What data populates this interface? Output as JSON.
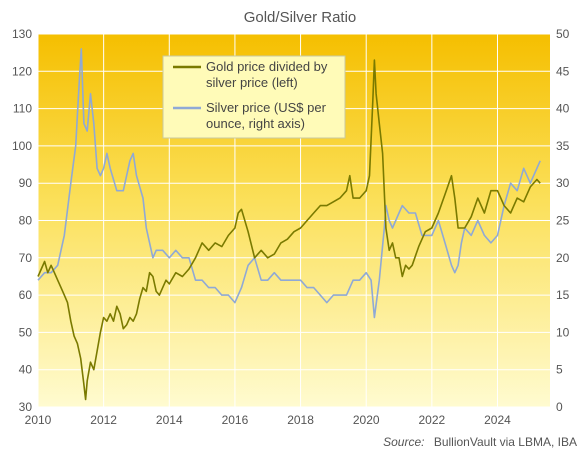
{
  "chart_data": {
    "type": "line",
    "title": "Gold/Silver Ratio",
    "source_label": "Source:",
    "source_text": "BullionVault via LBMA, IBA",
    "x_ticks": [
      "2010",
      "2012",
      "2014",
      "2016",
      "2018",
      "2020",
      "2022",
      "2024"
    ],
    "x_range": [
      2010,
      2025.6
    ],
    "y_left": {
      "range": [
        30,
        130
      ],
      "ticks": [
        "30",
        "40",
        "50",
        "60",
        "70",
        "80",
        "90",
        "100",
        "110",
        "120",
        "130"
      ]
    },
    "y_right": {
      "range": [
        0,
        50
      ],
      "ticks": [
        "0",
        "5",
        "10",
        "15",
        "20",
        "25",
        "30",
        "35",
        "40",
        "45",
        "50"
      ]
    },
    "legend": {
      "placement": "top-center"
    },
    "series": [
      {
        "name_lines": [
          "Gold price divided by",
          "silver price (left)"
        ],
        "axis": "left",
        "color": "#7a7a00",
        "points": [
          [
            2010.0,
            65
          ],
          [
            2010.1,
            67
          ],
          [
            2010.2,
            69
          ],
          [
            2010.3,
            66
          ],
          [
            2010.4,
            68
          ],
          [
            2010.5,
            66
          ],
          [
            2010.6,
            64
          ],
          [
            2010.7,
            62
          ],
          [
            2010.8,
            60
          ],
          [
            2010.9,
            58
          ],
          [
            2011.0,
            53
          ],
          [
            2011.1,
            49
          ],
          [
            2011.2,
            47
          ],
          [
            2011.3,
            43
          ],
          [
            2011.4,
            36
          ],
          [
            2011.45,
            32
          ],
          [
            2011.5,
            37
          ],
          [
            2011.6,
            42
          ],
          [
            2011.7,
            40
          ],
          [
            2011.8,
            45
          ],
          [
            2011.9,
            50
          ],
          [
            2012.0,
            54
          ],
          [
            2012.1,
            53
          ],
          [
            2012.2,
            55
          ],
          [
            2012.3,
            53
          ],
          [
            2012.4,
            57
          ],
          [
            2012.5,
            55
          ],
          [
            2012.6,
            51
          ],
          [
            2012.7,
            52
          ],
          [
            2012.8,
            54
          ],
          [
            2012.9,
            53
          ],
          [
            2013.0,
            55
          ],
          [
            2013.1,
            59
          ],
          [
            2013.2,
            62
          ],
          [
            2013.3,
            61
          ],
          [
            2013.4,
            66
          ],
          [
            2013.5,
            65
          ],
          [
            2013.6,
            61
          ],
          [
            2013.7,
            60
          ],
          [
            2013.8,
            62
          ],
          [
            2013.9,
            64
          ],
          [
            2014.0,
            63
          ],
          [
            2014.2,
            66
          ],
          [
            2014.4,
            65
          ],
          [
            2014.6,
            67
          ],
          [
            2014.8,
            70
          ],
          [
            2015.0,
            74
          ],
          [
            2015.2,
            72
          ],
          [
            2015.4,
            74
          ],
          [
            2015.6,
            73
          ],
          [
            2015.8,
            76
          ],
          [
            2016.0,
            78
          ],
          [
            2016.1,
            82
          ],
          [
            2016.2,
            83
          ],
          [
            2016.4,
            77
          ],
          [
            2016.6,
            70
          ],
          [
            2016.8,
            72
          ],
          [
            2017.0,
            70
          ],
          [
            2017.2,
            71
          ],
          [
            2017.4,
            74
          ],
          [
            2017.6,
            75
          ],
          [
            2017.8,
            77
          ],
          [
            2018.0,
            78
          ],
          [
            2018.2,
            80
          ],
          [
            2018.4,
            82
          ],
          [
            2018.6,
            84
          ],
          [
            2018.8,
            84
          ],
          [
            2019.0,
            85
          ],
          [
            2019.2,
            86
          ],
          [
            2019.4,
            88
          ],
          [
            2019.5,
            92
          ],
          [
            2019.6,
            86
          ],
          [
            2019.8,
            86
          ],
          [
            2019.9,
            87
          ],
          [
            2020.0,
            88
          ],
          [
            2020.1,
            92
          ],
          [
            2020.2,
            112
          ],
          [
            2020.25,
            123
          ],
          [
            2020.3,
            114
          ],
          [
            2020.4,
            106
          ],
          [
            2020.5,
            98
          ],
          [
            2020.6,
            78
          ],
          [
            2020.7,
            72
          ],
          [
            2020.8,
            74
          ],
          [
            2020.9,
            70
          ],
          [
            2021.0,
            70
          ],
          [
            2021.1,
            65
          ],
          [
            2021.2,
            68
          ],
          [
            2021.3,
            67
          ],
          [
            2021.4,
            68
          ],
          [
            2021.6,
            73
          ],
          [
            2021.8,
            77
          ],
          [
            2022.0,
            78
          ],
          [
            2022.2,
            82
          ],
          [
            2022.4,
            87
          ],
          [
            2022.6,
            92
          ],
          [
            2022.7,
            86
          ],
          [
            2022.8,
            78
          ],
          [
            2023.0,
            78
          ],
          [
            2023.2,
            81
          ],
          [
            2023.4,
            86
          ],
          [
            2023.6,
            82
          ],
          [
            2023.8,
            88
          ],
          [
            2024.0,
            88
          ],
          [
            2024.2,
            84
          ],
          [
            2024.4,
            82
          ],
          [
            2024.6,
            86
          ],
          [
            2024.8,
            85
          ],
          [
            2025.0,
            89
          ],
          [
            2025.2,
            91
          ],
          [
            2025.3,
            90
          ]
        ]
      },
      {
        "name_lines": [
          "Silver price (US$ per",
          "ounce, right axis)"
        ],
        "axis": "right",
        "color": "#8fa9d6",
        "points": [
          [
            2010.0,
            17
          ],
          [
            2010.2,
            18
          ],
          [
            2010.4,
            18
          ],
          [
            2010.6,
            19
          ],
          [
            2010.8,
            23
          ],
          [
            2011.0,
            30
          ],
          [
            2011.15,
            35
          ],
          [
            2011.25,
            43
          ],
          [
            2011.32,
            48
          ],
          [
            2011.4,
            38
          ],
          [
            2011.5,
            37
          ],
          [
            2011.6,
            42
          ],
          [
            2011.7,
            38
          ],
          [
            2011.8,
            32
          ],
          [
            2011.9,
            31
          ],
          [
            2012.0,
            32
          ],
          [
            2012.1,
            34
          ],
          [
            2012.2,
            32
          ],
          [
            2012.4,
            29
          ],
          [
            2012.6,
            29
          ],
          [
            2012.8,
            33
          ],
          [
            2012.9,
            34
          ],
          [
            2013.0,
            31
          ],
          [
            2013.2,
            28
          ],
          [
            2013.3,
            24
          ],
          [
            2013.4,
            22
          ],
          [
            2013.5,
            20
          ],
          [
            2013.6,
            21
          ],
          [
            2013.8,
            21
          ],
          [
            2014.0,
            20
          ],
          [
            2014.2,
            21
          ],
          [
            2014.4,
            20
          ],
          [
            2014.6,
            20
          ],
          [
            2014.8,
            17
          ],
          [
            2015.0,
            17
          ],
          [
            2015.2,
            16
          ],
          [
            2015.4,
            16
          ],
          [
            2015.6,
            15
          ],
          [
            2015.8,
            15
          ],
          [
            2016.0,
            14
          ],
          [
            2016.2,
            16
          ],
          [
            2016.4,
            19
          ],
          [
            2016.6,
            20
          ],
          [
            2016.8,
            17
          ],
          [
            2017.0,
            17
          ],
          [
            2017.2,
            18
          ],
          [
            2017.4,
            17
          ],
          [
            2017.6,
            17
          ],
          [
            2017.8,
            17
          ],
          [
            2018.0,
            17
          ],
          [
            2018.2,
            16
          ],
          [
            2018.4,
            16
          ],
          [
            2018.6,
            15
          ],
          [
            2018.8,
            14
          ],
          [
            2019.0,
            15
          ],
          [
            2019.2,
            15
          ],
          [
            2019.4,
            15
          ],
          [
            2019.6,
            17
          ],
          [
            2019.8,
            17
          ],
          [
            2020.0,
            18
          ],
          [
            2020.15,
            17
          ],
          [
            2020.25,
            12
          ],
          [
            2020.4,
            17
          ],
          [
            2020.55,
            24
          ],
          [
            2020.6,
            27
          ],
          [
            2020.7,
            25
          ],
          [
            2020.8,
            24
          ],
          [
            2021.0,
            26
          ],
          [
            2021.1,
            27
          ],
          [
            2021.3,
            26
          ],
          [
            2021.5,
            26
          ],
          [
            2021.7,
            23
          ],
          [
            2021.9,
            23
          ],
          [
            2022.0,
            23
          ],
          [
            2022.2,
            25
          ],
          [
            2022.4,
            22
          ],
          [
            2022.6,
            19
          ],
          [
            2022.7,
            18
          ],
          [
            2022.8,
            19
          ],
          [
            2022.9,
            22
          ],
          [
            2023.0,
            24
          ],
          [
            2023.2,
            23
          ],
          [
            2023.4,
            25
          ],
          [
            2023.6,
            23
          ],
          [
            2023.8,
            22
          ],
          [
            2024.0,
            23
          ],
          [
            2024.2,
            27
          ],
          [
            2024.4,
            30
          ],
          [
            2024.6,
            29
          ],
          [
            2024.8,
            32
          ],
          [
            2025.0,
            30
          ],
          [
            2025.2,
            32
          ],
          [
            2025.3,
            33
          ]
        ]
      }
    ]
  }
}
